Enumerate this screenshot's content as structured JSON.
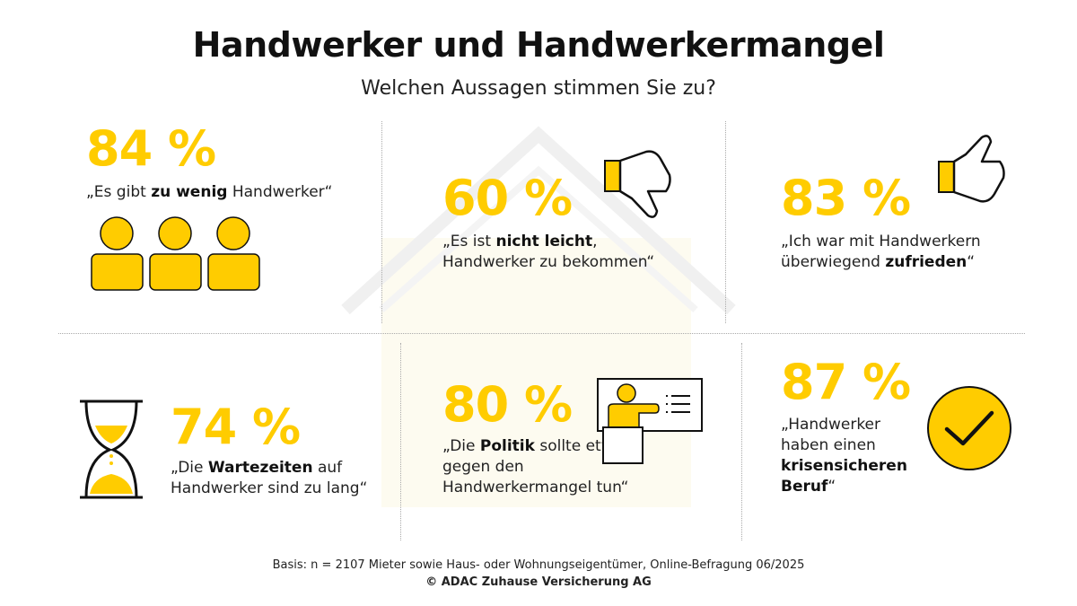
{
  "title": "Handwerker und Handwerkermangel",
  "subtitle": "Welchen Aussagen stimmen Sie zu?",
  "colors": {
    "accent": "#FFCC00",
    "text": "#111111",
    "divider": "#aaaaaa"
  },
  "stats": [
    {
      "value": "84 %",
      "quote": {
        "before": "„Es gibt ",
        "bold": "zu wenig",
        "after": " Handwerker“"
      },
      "icon": "people-icon"
    },
    {
      "value": "60 %",
      "quote": {
        "before": "„Es ist ",
        "bold": "nicht leicht",
        "after": ", Handwerker zu bekommen“"
      },
      "icon": "thumbs-down-icon"
    },
    {
      "value": "83 %",
      "quote": {
        "before": "„Ich war mit Handwerkern überwiegend ",
        "bold": "zufrieden",
        "after": "“"
      },
      "icon": "thumbs-up-icon"
    },
    {
      "value": "74 %",
      "quote": {
        "before": "„Die ",
        "bold": "Wartezeiten",
        "after": " auf Handwerker sind zu lang“"
      },
      "icon": "hourglass-icon"
    },
    {
      "value": "80 %",
      "quote": {
        "before": "„Die ",
        "bold": "Politik",
        "after": " sollte etwas gegen den Handwerkermangel tun“"
      },
      "icon": "politician-podium-icon"
    },
    {
      "value": "87 %",
      "quote": {
        "before": "„Handwerker haben einen ",
        "bold": "krisensicheren Beruf",
        "after": "“"
      },
      "icon": "checkmark-circle-icon"
    }
  ],
  "footer": {
    "basis": "Basis: n = 2107 Mieter sowie Haus- oder Wohnungseigentümer, Online-Befragung 06/2025",
    "copyright": "© ADAC Zuhause Versicherung AG"
  }
}
